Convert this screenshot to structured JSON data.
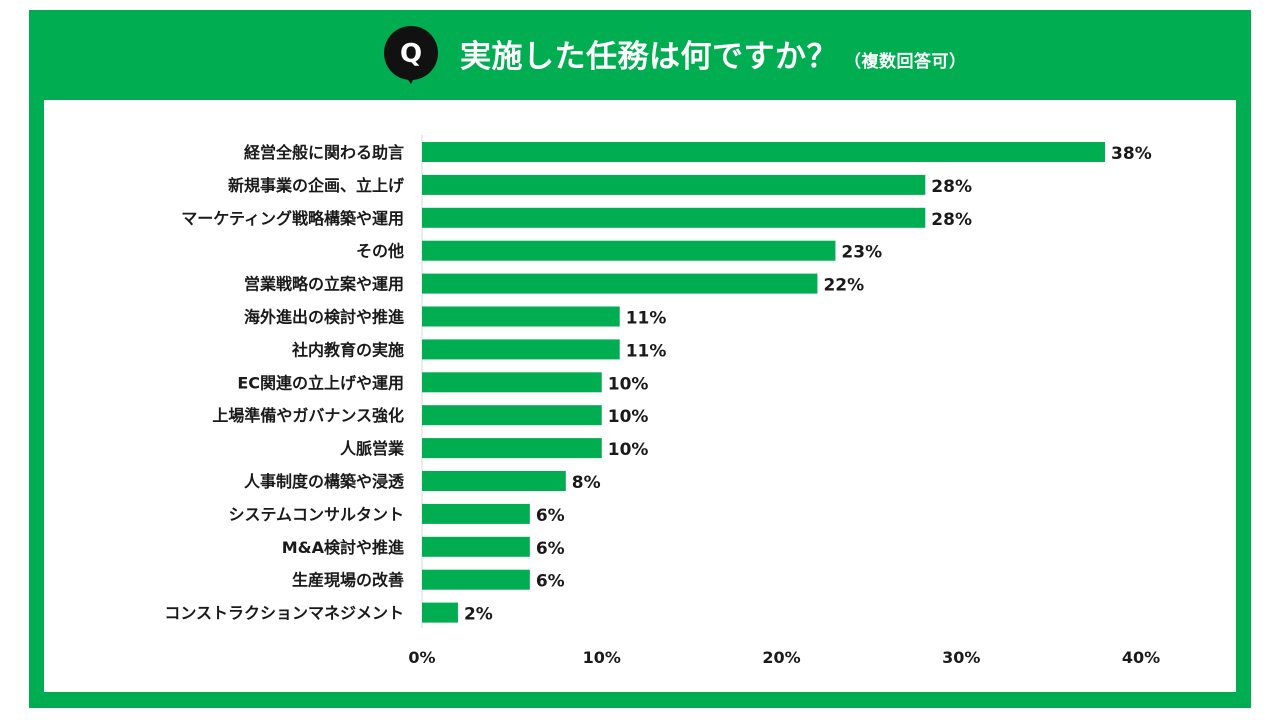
{
  "header": {
    "q_label": "Q",
    "title": "実施した任務は何ですか？",
    "note": "（複数回答可）"
  },
  "colors": {
    "frame": "#00ad50",
    "bar": "#00ad50",
    "badge": "#111111"
  },
  "chart_data": {
    "type": "bar",
    "orientation": "horizontal",
    "title": "実施した任務は何ですか？（複数回答可）",
    "categories": [
      "経営全般に関わる助言",
      "新規事業の企画、立上げ",
      "マーケティング戦略構築や運用",
      "その他",
      "営業戦略の立案や運用",
      "海外進出の検討や推進",
      "社内教育の実施",
      "EC関連の立上げや運用",
      "上場準備やガバナンス強化",
      "人脈営業",
      "人事制度の構築や浸透",
      "システムコンサルタント",
      "M&A検討や推進",
      "生産現場の改善",
      "コンストラクションマネジメント"
    ],
    "values": [
      38,
      28,
      28,
      23,
      22,
      11,
      11,
      10,
      10,
      10,
      8,
      6,
      6,
      6,
      2
    ],
    "value_labels": [
      "38%",
      "28%",
      "28%",
      "23%",
      "22%",
      "11%",
      "11%",
      "10%",
      "10%",
      "10%",
      "8%",
      "6%",
      "6%",
      "6%",
      "2%"
    ],
    "xlim": [
      0,
      40
    ],
    "x_ticks": [
      0,
      10,
      20,
      30,
      40
    ],
    "x_tick_labels": [
      "0%",
      "10%",
      "20%",
      "30%",
      "40%"
    ],
    "xlabel": "",
    "ylabel": "",
    "grid": false
  }
}
